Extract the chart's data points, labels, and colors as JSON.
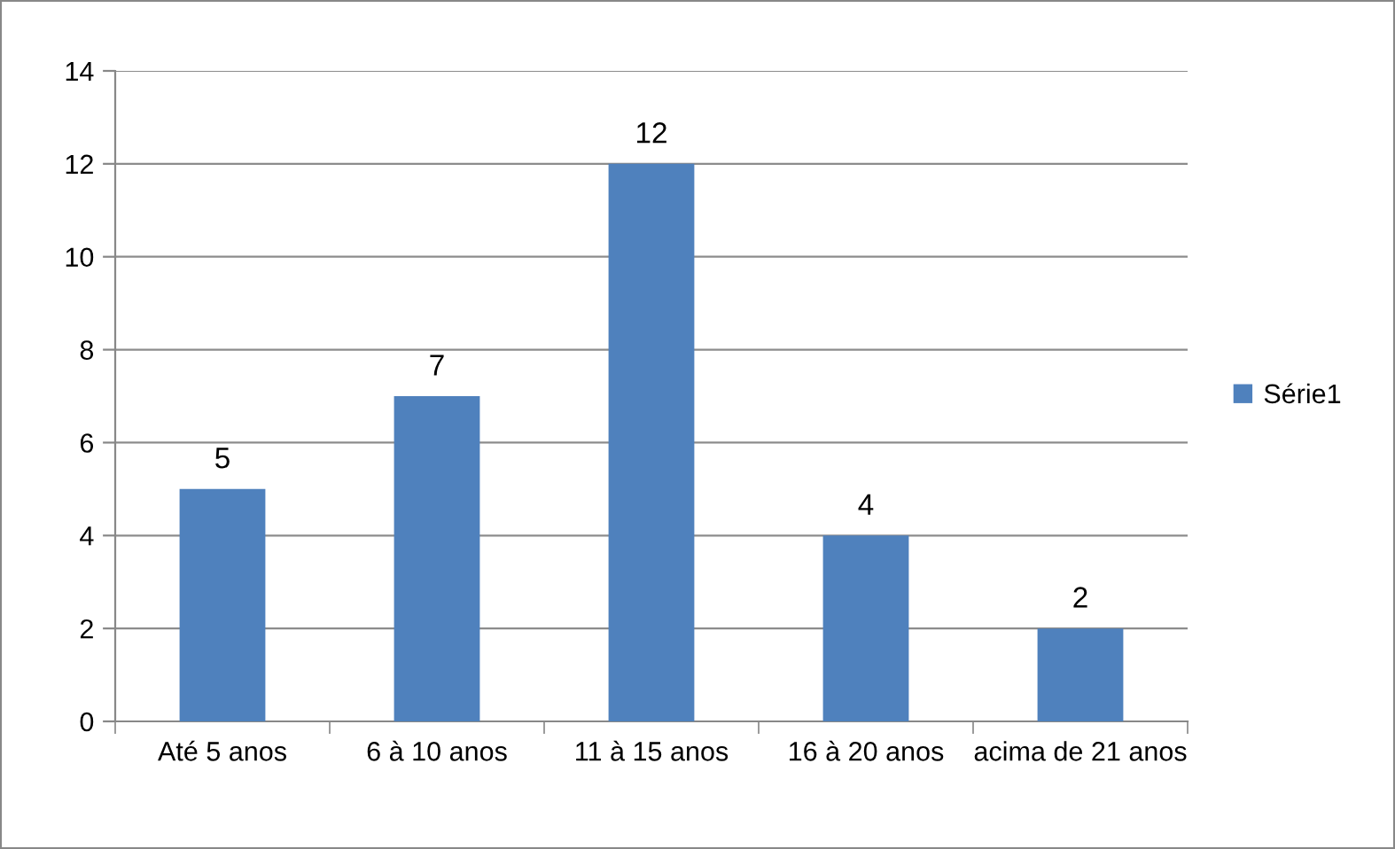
{
  "chart_data": {
    "type": "bar",
    "categories": [
      "Até 5 anos",
      "6 à 10 anos",
      "11 à 15 anos",
      "16 à 20 anos",
      "acima de 21 anos"
    ],
    "series": [
      {
        "name": "Série1",
        "color": "#4f81bd",
        "values": [
          5,
          7,
          12,
          4,
          2
        ]
      }
    ],
    "ylim": [
      0,
      14
    ],
    "yticks": [
      0,
      2,
      4,
      6,
      8,
      10,
      12,
      14
    ],
    "grid": "y",
    "legend": "right",
    "data_labels": true
  }
}
